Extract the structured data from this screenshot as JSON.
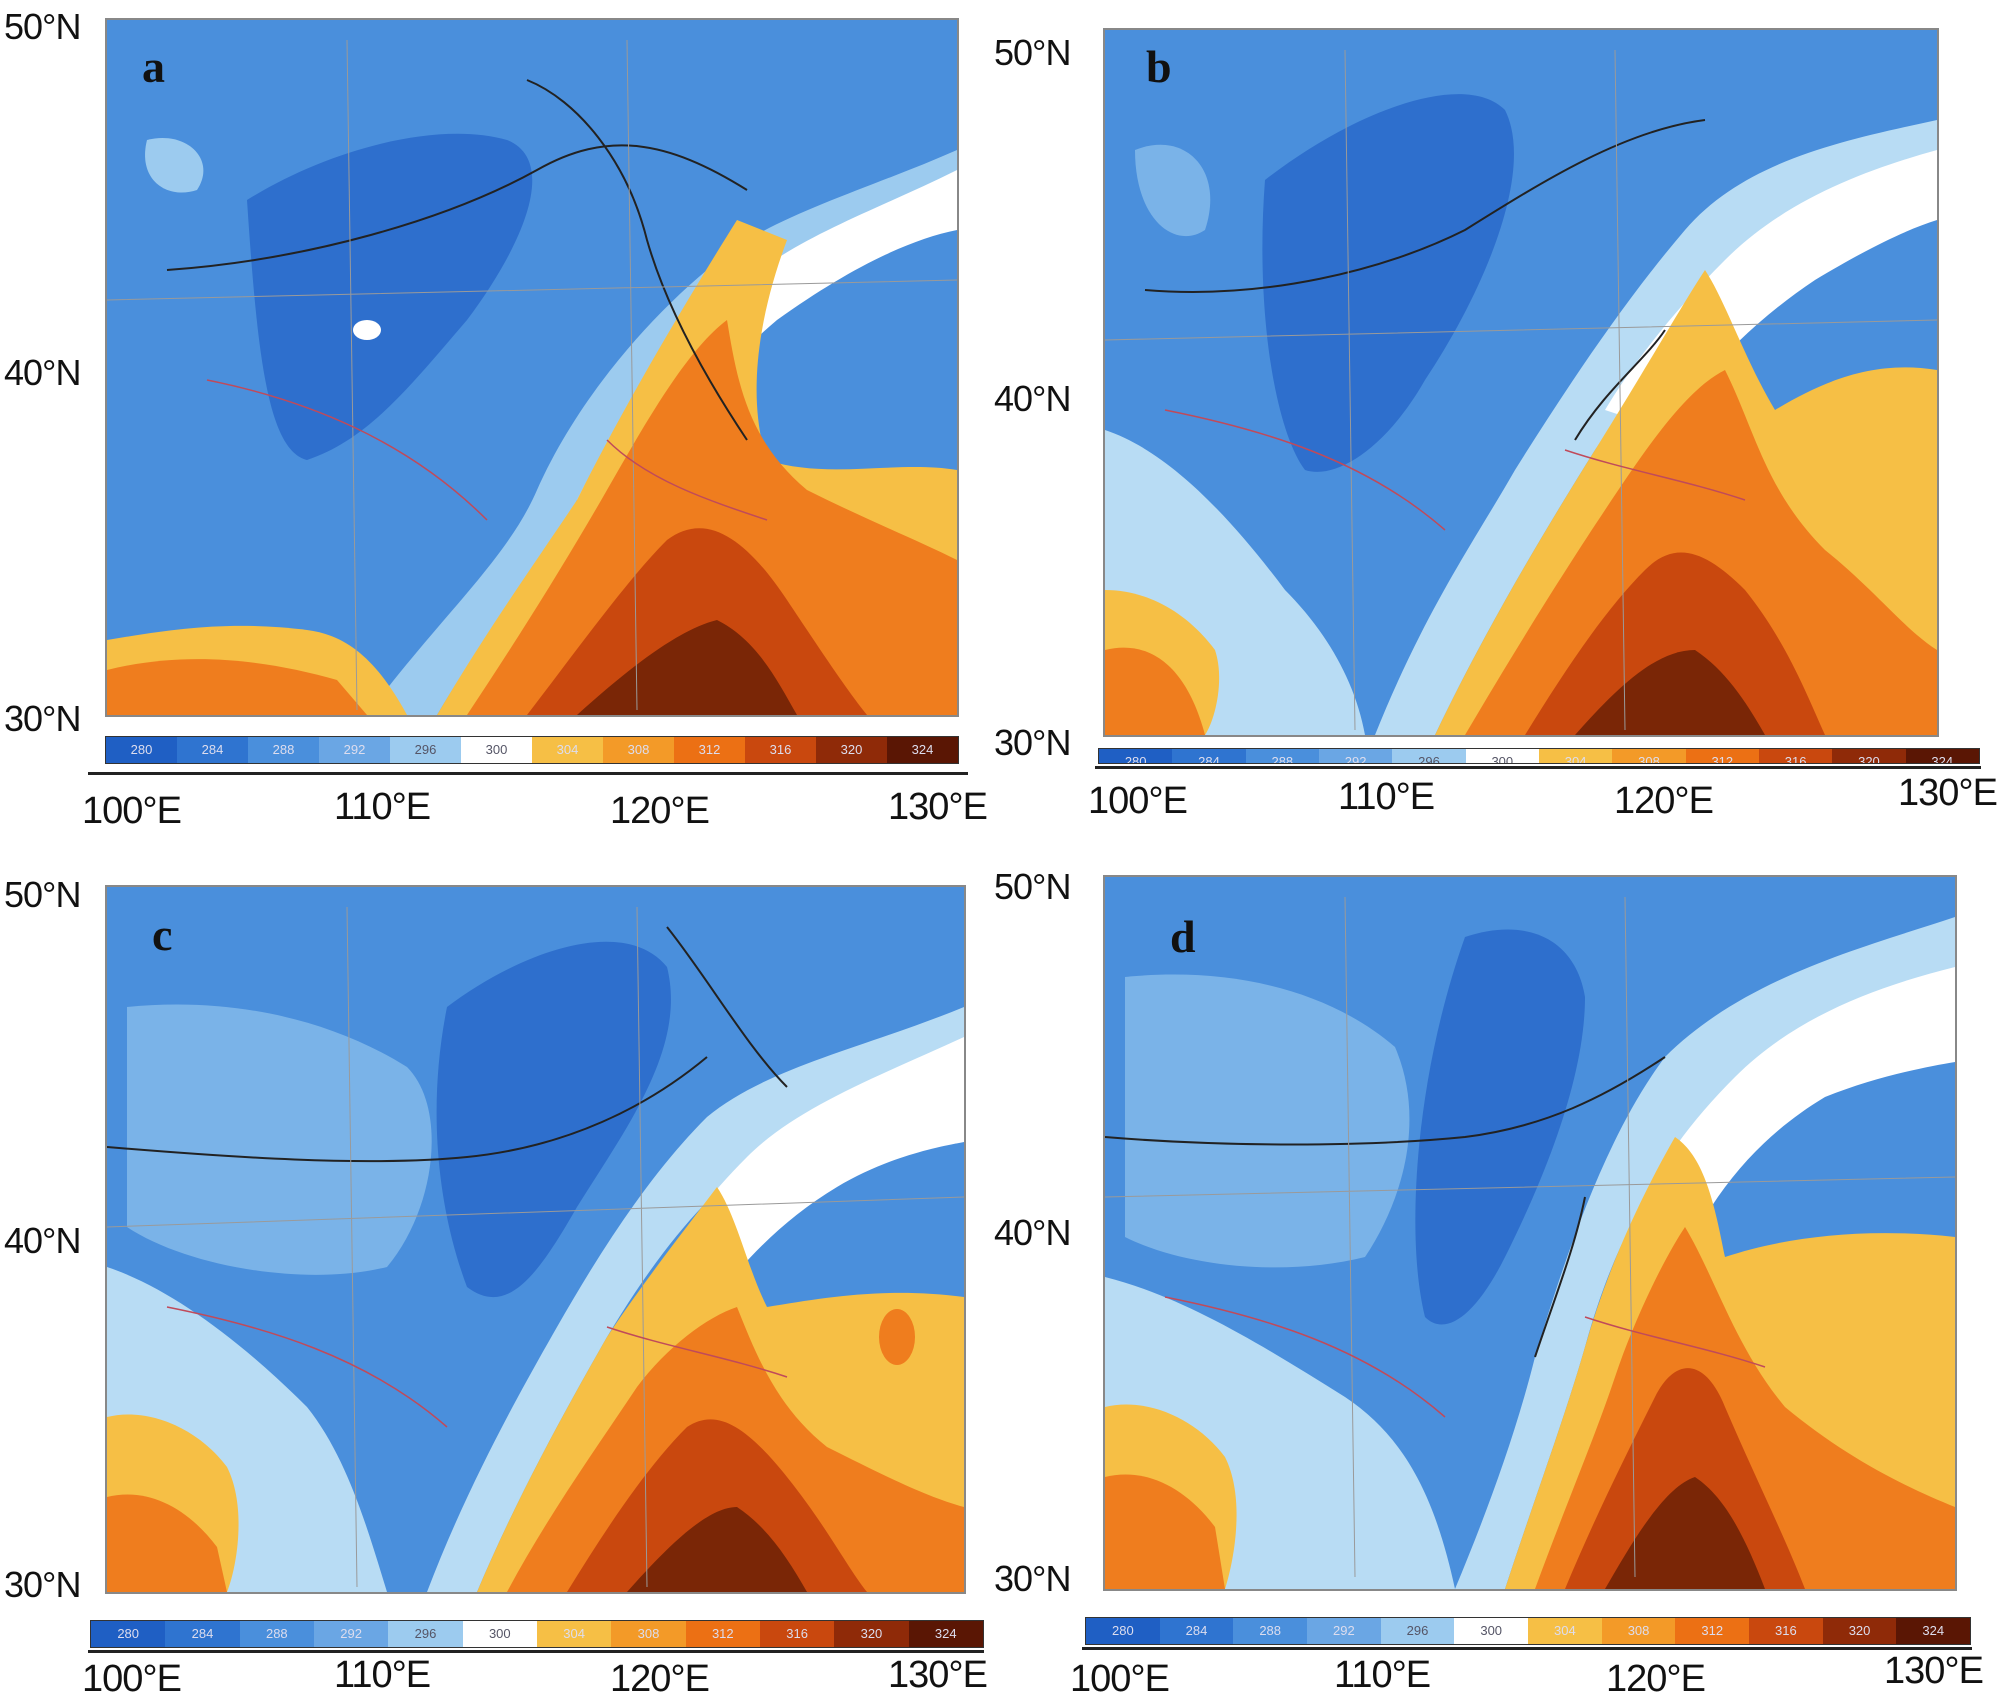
{
  "panels": [
    {
      "letter": "a"
    },
    {
      "letter": "b"
    },
    {
      "letter": "c"
    },
    {
      "letter": "d"
    }
  ],
  "latitude_labels": [
    "50°N",
    "40°N",
    "30°N"
  ],
  "longitude_labels": [
    "100°E",
    "110°E",
    "120°E",
    "130°E"
  ],
  "colorbar": {
    "labels": [
      "280",
      "284",
      "288",
      "292",
      "296",
      "300",
      "304",
      "308",
      "312",
      "316",
      "320",
      "324"
    ],
    "colors": [
      "#1f5fc4",
      "#2f74d0",
      "#4a8fdc",
      "#6aa6e4",
      "#9ccbef",
      "#ffffff",
      "#f6bf45",
      "#f39a28",
      "#ec7014",
      "#c9480e",
      "#8f2a08",
      "#5a1604"
    ]
  },
  "colors": {
    "deep_blue": "#2e6fcd",
    "mid_blue": "#4a8fdc",
    "light_blue": "#7ab3e8",
    "pale_blue": "#b8dcf4",
    "white": "#ffffff",
    "yellow": "#f6bf45",
    "orange": "#ef7d1e",
    "dark_orange": "#c9480e",
    "brown": "#7a2606"
  }
}
